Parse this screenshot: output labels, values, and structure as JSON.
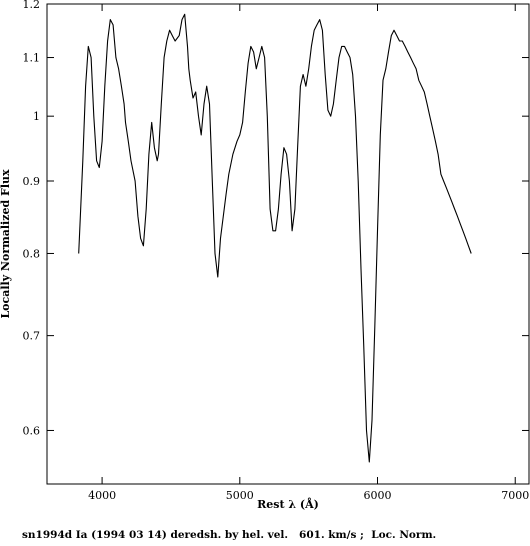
{
  "chart_data": {
    "type": "line",
    "title": "",
    "xlabel": "Rest λ (Å)",
    "ylabel": "Locally Normalized Flux",
    "caption": "sn1994d Ia (1994 03 14) deredsh. by hel. vel.   601. km/s ;  Loc. Norm.",
    "y_scale": "log",
    "xlim": [
      3600,
      7100
    ],
    "ylim": [
      0.55,
      1.2
    ],
    "x_ticks": [
      4000,
      5000,
      6000,
      7000
    ],
    "x_tick_labels": [
      "4000",
      "5000",
      "6000",
      "7000"
    ],
    "y_ticks": [
      0.6,
      0.7,
      0.8,
      0.9,
      1.0,
      1.1,
      1.2
    ],
    "y_tick_labels": [
      "0.6",
      "0.7",
      "0.8",
      "0.9",
      "1",
      "1.1",
      "1.2"
    ],
    "grid": false,
    "legend": "none",
    "line_color": "#000000",
    "series": [
      {
        "x": [
          3830,
          3860,
          3880,
          3900,
          3920,
          3940,
          3960,
          3980,
          4000,
          4020,
          4040,
          4060,
          4080,
          4100,
          4120,
          4140,
          4160,
          4170,
          4190,
          4210,
          4240,
          4260,
          4280,
          4300,
          4320,
          4340,
          4360,
          4380,
          4400,
          4410,
          4430,
          4450,
          4470,
          4490,
          4510,
          4530,
          4560,
          4580,
          4600,
          4620,
          4630,
          4640,
          4660,
          4680,
          4700,
          4720,
          4740,
          4760,
          4780,
          4800,
          4820,
          4840,
          4860,
          4880,
          4900,
          4920,
          4950,
          4980,
          5000,
          5020,
          5040,
          5060,
          5080,
          5100,
          5120,
          5140,
          5160,
          5180,
          5200,
          5220,
          5240,
          5260,
          5280,
          5300,
          5320,
          5340,
          5360,
          5380,
          5400,
          5420,
          5440,
          5460,
          5480,
          5500,
          5520,
          5540,
          5560,
          5580,
          5600,
          5620,
          5640,
          5660,
          5680,
          5700,
          5720,
          5740,
          5760,
          5780,
          5800,
          5820,
          5840,
          5860,
          5880,
          5900,
          5920,
          5940,
          5960,
          5980,
          6000,
          6020,
          6040,
          6060,
          6080,
          6100,
          6120,
          6140,
          6160,
          6180,
          6200,
          6220,
          6240,
          6260,
          6280,
          6300,
          6320,
          6340,
          6360,
          6380,
          6400,
          6420,
          6440,
          6460,
          6480,
          6500,
          6520,
          6540,
          6560,
          6580,
          6600,
          6620,
          6640,
          6660,
          6680
        ],
        "values": [
          0.8,
          0.93,
          1.05,
          1.12,
          1.1,
          1.0,
          0.93,
          0.92,
          0.96,
          1.05,
          1.13,
          1.17,
          1.16,
          1.1,
          1.08,
          1.05,
          1.02,
          0.99,
          0.96,
          0.93,
          0.9,
          0.85,
          0.82,
          0.81,
          0.86,
          0.94,
          0.99,
          0.95,
          0.93,
          0.94,
          1.02,
          1.1,
          1.13,
          1.15,
          1.14,
          1.13,
          1.14,
          1.17,
          1.18,
          1.12,
          1.08,
          1.06,
          1.03,
          1.04,
          1.0,
          0.97,
          1.02,
          1.05,
          1.02,
          0.9,
          0.8,
          0.77,
          0.82,
          0.85,
          0.88,
          0.91,
          0.94,
          0.96,
          0.97,
          0.99,
          1.04,
          1.09,
          1.12,
          1.11,
          1.08,
          1.1,
          1.12,
          1.1,
          1.0,
          0.86,
          0.83,
          0.83,
          0.86,
          0.91,
          0.95,
          0.94,
          0.9,
          0.83,
          0.86,
          0.95,
          1.05,
          1.07,
          1.05,
          1.08,
          1.12,
          1.15,
          1.16,
          1.17,
          1.15,
          1.07,
          1.01,
          1.0,
          1.02,
          1.06,
          1.1,
          1.12,
          1.12,
          1.11,
          1.1,
          1.07,
          1.0,
          0.9,
          0.78,
          0.69,
          0.6,
          0.57,
          0.61,
          0.71,
          0.83,
          0.97,
          1.06,
          1.08,
          1.11,
          1.14,
          1.15,
          1.14,
          1.13,
          1.13,
          1.12,
          1.11,
          1.1,
          1.09,
          1.08,
          1.06,
          1.05,
          1.04,
          1.02,
          1.0,
          0.98,
          0.96,
          0.94,
          0.91,
          0.9,
          0.89,
          0.88,
          0.87,
          0.86,
          0.85,
          0.84,
          0.83,
          0.82,
          0.81,
          0.8
        ]
      }
    ]
  }
}
